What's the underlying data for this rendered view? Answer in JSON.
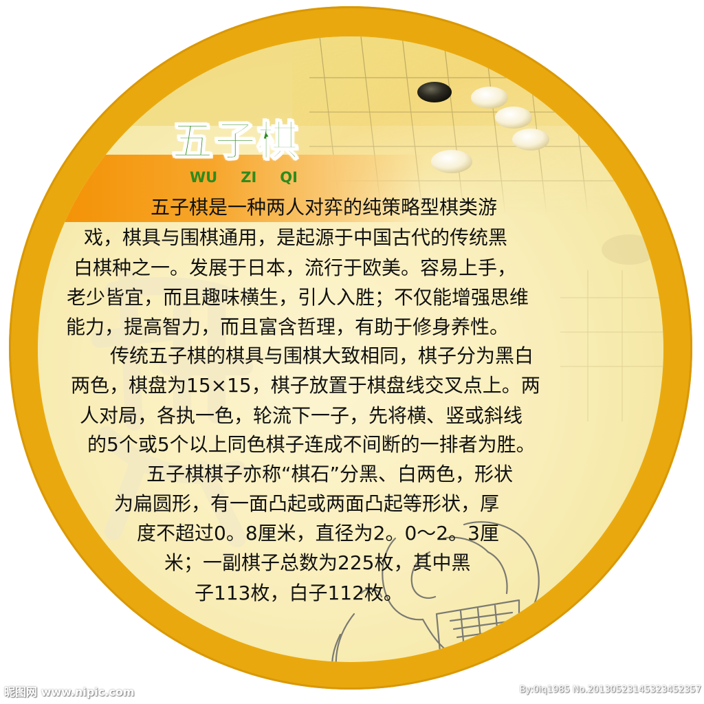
{
  "title": {
    "main": "五子棋",
    "pinyin": [
      "WU",
      "ZI",
      "QI"
    ]
  },
  "body_lines": [
    "五子棋是一种两人对弈的纯策略型棋类游",
    "戏，棋具与围棋通用，是起源于中国古代的传统黑",
    "白棋种之一。发展于日本，流行于欧美。容易上手，",
    "老少皆宜，而且趣味横生，引人入胜；不仅能增强思维",
    "能力，提高智力，而且富含哲理，有助于修身养性。",
    "传统五子棋的棋具与围棋大致相同，棋子分为黑白",
    "两色，棋盘为15×15，棋子放置于棋盘线交叉点上。两",
    "人对局，各执一色，轮流下一子，先将横、竖或斜线",
    "的5个或5个以上同色棋子连成不间断的一排者为胜。",
    "五子棋棋子亦称“棋石”分黑、白两色，形状",
    "为扁圆形，有一面凸起或两面凸起等形状，厚",
    "度不超过0。8厘米，直径为2。0～2。3厘",
    "米；一副棋子总数为225枚，其中黑",
    "子113枚，白子112枚。"
  ],
  "watermark": {
    "left": "昵图网 www.nipic.com",
    "right": "By:0iq1985 No.20130523145323452357",
    "background_glyph": "棋"
  },
  "colors": {
    "border": "#e9a90e",
    "title_band": "#f38f00",
    "title_text": "#2f8a1d",
    "body_text": "#111111"
  }
}
